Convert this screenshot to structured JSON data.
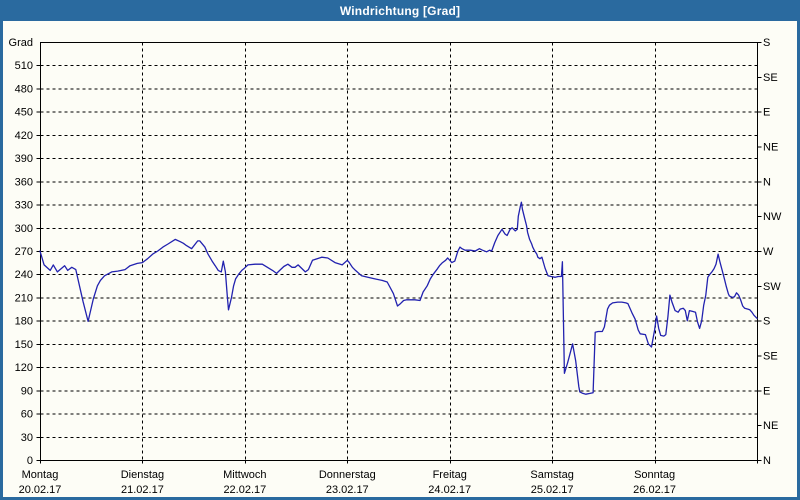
{
  "window": {
    "title": "Windrichtung [Grad]"
  },
  "colors": {
    "titlebar_bg": "#2a6a9f",
    "frame_border": "#2a6a9f",
    "background": "#fdfdf6",
    "grid": "#000000",
    "axis": "#000000",
    "text": "#000000",
    "title_text": "#ffffff",
    "line": "#2222af"
  },
  "chart_data": {
    "type": "line",
    "title": "Windrichtung [Grad]",
    "y_axis_left": {
      "label": "Grad",
      "min": 0,
      "max": 540,
      "tick_step": 30,
      "tick_labels": [
        "0",
        "30",
        "60",
        "90",
        "120",
        "150",
        "180",
        "210",
        "240",
        "270",
        "300",
        "330",
        "360",
        "390",
        "420",
        "450",
        "480",
        "510"
      ]
    },
    "y_axis_right": {
      "type": "compass",
      "step_deg": 45,
      "labels_top_to_bottom": [
        "S",
        "SE",
        "E",
        "NE",
        "N",
        "NW",
        "W",
        "SW",
        "S",
        "SE",
        "E",
        "NE",
        "N"
      ]
    },
    "x_axis": {
      "days": [
        {
          "weekday": "Montag",
          "date": "20.02.17"
        },
        {
          "weekday": "Dienstag",
          "date": "21.02.17"
        },
        {
          "weekday": "Mittwoch",
          "date": "22.02.17"
        },
        {
          "weekday": "Donnerstag",
          "date": "23.02.17"
        },
        {
          "weekday": "Freitag",
          "date": "24.02.17"
        },
        {
          "weekday": "Samstag",
          "date": "25.02.17"
        },
        {
          "weekday": "Sonntag",
          "date": "26.02.17"
        }
      ]
    },
    "grid": {
      "horizontal_step_deg": 30,
      "vertical": "per-day",
      "style": "dashed"
    },
    "series": [
      {
        "name": "Windrichtung",
        "unit": "Grad",
        "color": "#2222af",
        "points_day_deg": [
          [
            0,
            270
          ],
          [
            0.04,
            252
          ],
          [
            0.1,
            245
          ],
          [
            0.13,
            252
          ],
          [
            0.17,
            243
          ],
          [
            0.24,
            251
          ],
          [
            0.27,
            245
          ],
          [
            0.31,
            249
          ],
          [
            0.35,
            246
          ],
          [
            0.37,
            234
          ],
          [
            0.42,
            205
          ],
          [
            0.47,
            179
          ],
          [
            0.52,
            208
          ],
          [
            0.56,
            225
          ],
          [
            0.59,
            232
          ],
          [
            0.63,
            238
          ],
          [
            0.7,
            243
          ],
          [
            0.76,
            244
          ],
          [
            0.83,
            246
          ],
          [
            0.88,
            251
          ],
          [
            0.95,
            254
          ],
          [
            1,
            255
          ],
          [
            1.05,
            260
          ],
          [
            1.1,
            266
          ],
          [
            1.15,
            270
          ],
          [
            1.2,
            275
          ],
          [
            1.25,
            279
          ],
          [
            1.32,
            285
          ],
          [
            1.37,
            282
          ],
          [
            1.4,
            280
          ],
          [
            1.43,
            277
          ],
          [
            1.48,
            273
          ],
          [
            1.54,
            283
          ],
          [
            1.56,
            283
          ],
          [
            1.61,
            275
          ],
          [
            1.64,
            266
          ],
          [
            1.68,
            257
          ],
          [
            1.71,
            251
          ],
          [
            1.74,
            245
          ],
          [
            1.77,
            243
          ],
          [
            1.79,
            257
          ],
          [
            1.81,
            243
          ],
          [
            1.83,
            210
          ],
          [
            1.84,
            194
          ],
          [
            1.87,
            210
          ],
          [
            1.89,
            225
          ],
          [
            1.91,
            234
          ],
          [
            1.94,
            240
          ],
          [
            1.97,
            245
          ],
          [
            1.99,
            247
          ],
          [
            2.03,
            252
          ],
          [
            2.1,
            253
          ],
          [
            2.17,
            253
          ],
          [
            2.22,
            249
          ],
          [
            2.27,
            245
          ],
          [
            2.31,
            241
          ],
          [
            2.34,
            245
          ],
          [
            2.38,
            250
          ],
          [
            2.42,
            253
          ],
          [
            2.46,
            249
          ],
          [
            2.49,
            249
          ],
          [
            2.52,
            252
          ],
          [
            2.59,
            243
          ],
          [
            2.62,
            246
          ],
          [
            2.66,
            258
          ],
          [
            2.75,
            262
          ],
          [
            2.81,
            261
          ],
          [
            2.88,
            255
          ],
          [
            2.95,
            252
          ],
          [
            3,
            258
          ],
          [
            3.02,
            255
          ],
          [
            3.05,
            249
          ],
          [
            3.08,
            245
          ],
          [
            3.14,
            238
          ],
          [
            3.2,
            236
          ],
          [
            3.27,
            234
          ],
          [
            3.34,
            232
          ],
          [
            3.39,
            230
          ],
          [
            3.45,
            215
          ],
          [
            3.49,
            199
          ],
          [
            3.52,
            202
          ],
          [
            3.55,
            206
          ],
          [
            3.58,
            207
          ],
          [
            3.66,
            207
          ],
          [
            3.71,
            206
          ],
          [
            3.74,
            217
          ],
          [
            3.78,
            225
          ],
          [
            3.81,
            234
          ],
          [
            3.84,
            240
          ],
          [
            3.88,
            247
          ],
          [
            3.9,
            251
          ],
          [
            3.93,
            255
          ],
          [
            3.96,
            258
          ],
          [
            3.98,
            261
          ],
          [
            4.02,
            255
          ],
          [
            4.05,
            257
          ],
          [
            4.08,
            270
          ],
          [
            4.1,
            275
          ],
          [
            4.12,
            273
          ],
          [
            4.15,
            271
          ],
          [
            4.2,
            271
          ],
          [
            4.25,
            270
          ],
          [
            4.29,
            273
          ],
          [
            4.32,
            271
          ],
          [
            4.36,
            269
          ],
          [
            4.39,
            271
          ],
          [
            4.41,
            270
          ],
          [
            4.44,
            281
          ],
          [
            4.47,
            290
          ],
          [
            4.51,
            298
          ],
          [
            4.54,
            292
          ],
          [
            4.56,
            290
          ],
          [
            4.59,
            298
          ],
          [
            4.61,
            300
          ],
          [
            4.64,
            296
          ],
          [
            4.66,
            298
          ],
          [
            4.67,
            315
          ],
          [
            4.69,
            328
          ],
          [
            4.7,
            333
          ],
          [
            4.71,
            324
          ],
          [
            4.73,
            313
          ],
          [
            4.75,
            303
          ],
          [
            4.76,
            294
          ],
          [
            4.78,
            285
          ],
          [
            4.8,
            279
          ],
          [
            4.81,
            275
          ],
          [
            4.83,
            270
          ],
          [
            4.85,
            266
          ],
          [
            4.86,
            262
          ],
          [
            4.88,
            260
          ],
          [
            4.9,
            262
          ],
          [
            4.93,
            248
          ],
          [
            4.96,
            238
          ],
          [
            4.99,
            237
          ],
          [
            5.03,
            236
          ],
          [
            5.06,
            237
          ],
          [
            5.09,
            237
          ],
          [
            5.1,
            256
          ],
          [
            5.12,
            112
          ],
          [
            5.15,
            125
          ],
          [
            5.18,
            140
          ],
          [
            5.2,
            150
          ],
          [
            5.23,
            128
          ],
          [
            5.26,
            95
          ],
          [
            5.27,
            88
          ],
          [
            5.3,
            86
          ],
          [
            5.33,
            85
          ],
          [
            5.37,
            86
          ],
          [
            5.4,
            87
          ],
          [
            5.42,
            165
          ],
          [
            5.45,
            166
          ],
          [
            5.49,
            166
          ],
          [
            5.51,
            172
          ],
          [
            5.54,
            195
          ],
          [
            5.56,
            200
          ],
          [
            5.59,
            203
          ],
          [
            5.64,
            204
          ],
          [
            5.68,
            204
          ],
          [
            5.72,
            203
          ],
          [
            5.74,
            202
          ],
          [
            5.78,
            190
          ],
          [
            5.81,
            182
          ],
          [
            5.84,
            168
          ],
          [
            5.86,
            163
          ],
          [
            5.91,
            162
          ],
          [
            5.94,
            150
          ],
          [
            5.97,
            146
          ],
          [
            6,
            168
          ],
          [
            6.02,
            186
          ],
          [
            6.04,
            170
          ],
          [
            6.06,
            161
          ],
          [
            6.09,
            160
          ],
          [
            6.11,
            162
          ],
          [
            6.13,
            185
          ],
          [
            6.15,
            213
          ],
          [
            6.17,
            204
          ],
          [
            6.2,
            193
          ],
          [
            6.23,
            191
          ],
          [
            6.25,
            195
          ],
          [
            6.28,
            196
          ],
          [
            6.3,
            193
          ],
          [
            6.32,
            180
          ],
          [
            6.34,
            193
          ],
          [
            6.37,
            192
          ],
          [
            6.4,
            191
          ],
          [
            6.42,
            178
          ],
          [
            6.44,
            170
          ],
          [
            6.46,
            180
          ],
          [
            6.48,
            200
          ],
          [
            6.5,
            213
          ],
          [
            6.52,
            236
          ],
          [
            6.54,
            240
          ],
          [
            6.56,
            243
          ],
          [
            6.58,
            247
          ],
          [
            6.6,
            253
          ],
          [
            6.62,
            266
          ],
          [
            6.64,
            255
          ],
          [
            6.66,
            245
          ],
          [
            6.68,
            235
          ],
          [
            6.7,
            224
          ],
          [
            6.72,
            215
          ],
          [
            6.73,
            212
          ],
          [
            6.76,
            210
          ],
          [
            6.78,
            211
          ],
          [
            6.8,
            216
          ],
          [
            6.82,
            213
          ],
          [
            6.84,
            207
          ],
          [
            6.86,
            199
          ],
          [
            6.88,
            196
          ],
          [
            6.91,
            195
          ],
          [
            6.93,
            194
          ],
          [
            6.95,
            191
          ],
          [
            6.97,
            187
          ],
          [
            7,
            183
          ]
        ]
      }
    ]
  }
}
